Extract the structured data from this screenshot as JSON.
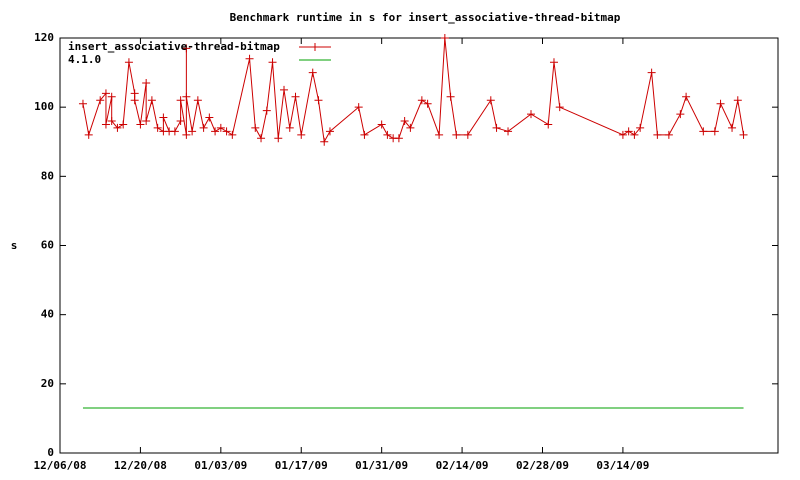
{
  "chart_data": {
    "type": "line",
    "title": "Benchmark runtime in s for insert_associative-thread-bitmap",
    "y_label": "s",
    "xlim": [
      "2008-12-06",
      "2009-04-10"
    ],
    "xticks": [
      {
        "value": "2008-12-06",
        "label": "12/06/08"
      },
      {
        "value": "2008-12-20",
        "label": "12/20/08"
      },
      {
        "value": "2009-01-03",
        "label": "01/03/09"
      },
      {
        "value": "2009-01-17",
        "label": "01/17/09"
      },
      {
        "value": "2009-01-31",
        "label": "01/31/09"
      },
      {
        "value": "2009-02-14",
        "label": "02/14/09"
      },
      {
        "value": "2009-02-28",
        "label": "02/28/09"
      },
      {
        "value": "2009-03-14",
        "label": "03/14/09"
      }
    ],
    "ylim": [
      0,
      120
    ],
    "yticks": [
      0,
      20,
      40,
      60,
      80,
      100,
      120
    ],
    "legend_position": "top-left",
    "series": [
      {
        "name": "insert_associative-thread-bitmap",
        "color": "#cc0000",
        "marker": "plus",
        "x": [
          "2008-12-10",
          "2008-12-11",
          "2008-12-13",
          "2008-12-14",
          "2008-12-14",
          "2008-12-15",
          "2008-12-15",
          "2008-12-16",
          "2008-12-17",
          "2008-12-18",
          "2008-12-19",
          "2008-12-19",
          "2008-12-20",
          "2008-12-21",
          "2008-12-21",
          "2008-12-22",
          "2008-12-23",
          "2008-12-24",
          "2008-12-24",
          "2008-12-25",
          "2008-12-26",
          "2008-12-27",
          "2008-12-27",
          "2008-12-28",
          "2008-12-28",
          "2008-12-28",
          "2008-12-29",
          "2008-12-30",
          "2008-12-31",
          "2009-01-01",
          "2009-01-02",
          "2009-01-03",
          "2009-01-04",
          "2009-01-05",
          "2009-01-08",
          "2009-01-09",
          "2009-01-10",
          "2009-01-11",
          "2009-01-12",
          "2009-01-13",
          "2009-01-14",
          "2009-01-15",
          "2009-01-16",
          "2009-01-17",
          "2009-01-19",
          "2009-01-20",
          "2009-01-21",
          "2009-01-22",
          "2009-01-27",
          "2009-01-28",
          "2009-01-31",
          "2009-02-01",
          "2009-02-02",
          "2009-02-03",
          "2009-02-04",
          "2009-02-05",
          "2009-02-07",
          "2009-02-08",
          "2009-02-10",
          "2009-02-11",
          "2009-02-12",
          "2009-02-13",
          "2009-02-15",
          "2009-02-19",
          "2009-02-20",
          "2009-02-22",
          "2009-02-26",
          "2009-03-01",
          "2009-03-02",
          "2009-03-03",
          "2009-03-14",
          "2009-03-15",
          "2009-03-16",
          "2009-03-17",
          "2009-03-19",
          "2009-03-20",
          "2009-03-22",
          "2009-03-24",
          "2009-03-25",
          "2009-03-28",
          "2009-03-30",
          "2009-03-31",
          "2009-04-02",
          "2009-04-03",
          "2009-04-04"
        ],
        "values": [
          101,
          92,
          102,
          104,
          95,
          103,
          96,
          94,
          95,
          113,
          104,
          102,
          95,
          107,
          96,
          102,
          94,
          93,
          97,
          93,
          93,
          96,
          102,
          92,
          117,
          103,
          93,
          102,
          94,
          97,
          93,
          94,
          93,
          92,
          114,
          94,
          91,
          99,
          113,
          91,
          105,
          94,
          103,
          92,
          110,
          102,
          90,
          93,
          100,
          92,
          95,
          92,
          91,
          91,
          96,
          94,
          102,
          101,
          92,
          120,
          103,
          92,
          92,
          102,
          94,
          93,
          98,
          95,
          113,
          100,
          92,
          93,
          92,
          94,
          110,
          92,
          92,
          98,
          103,
          93,
          93,
          101,
          94,
          102,
          92
        ]
      },
      {
        "name": "4.1.0",
        "color": "#00a000",
        "x": [
          "2008-12-10",
          "2009-04-04"
        ],
        "values": [
          13,
          13
        ]
      }
    ]
  }
}
